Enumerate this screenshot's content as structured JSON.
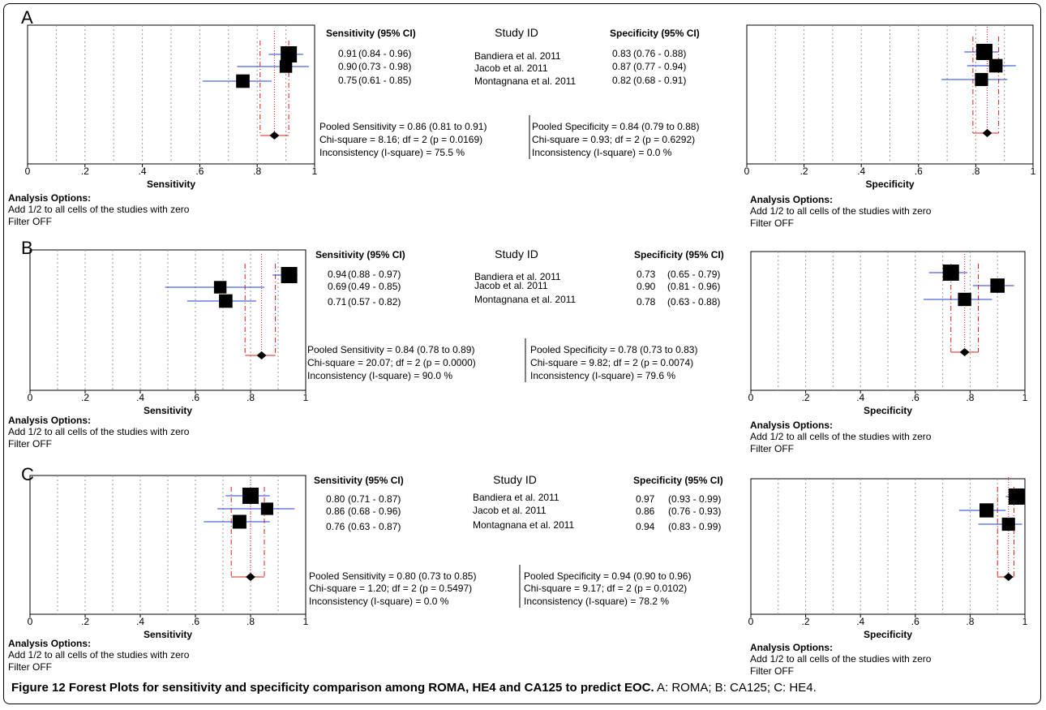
{
  "figure": {
    "caption_title": "Figure 12 Forest Plots for sensitivity and specificity comparison among ROMA, HE4 and CA125 to predict EOC.",
    "caption_detail": " A: ROMA; B: CA125; C: HE4."
  },
  "table_labels": {
    "sens_header": "Sensitivity (95% CI)",
    "study_header": "Study ID",
    "spec_header": "Specificity (95% CI)",
    "sens_xlabel": "Sensitivity",
    "spec_xlabel": "Specificity",
    "analysis_title": "Analysis Options:",
    "analysis_line1": "Add 1/2 to all cells of the studies with zero",
    "analysis_line2": "Filter OFF"
  },
  "colors": {
    "ci_line": "#1f3fd6",
    "pooled_line": "#e0201b",
    "grid": "#9a9a9a"
  },
  "chart_data": [
    {
      "type": "forest",
      "panel": "A",
      "xlim": [
        0,
        1
      ],
      "ticks": [
        "0",
        ".2",
        ".4",
        ".6",
        ".8",
        "1"
      ],
      "studies": [
        "Bandiera et al. 2011",
        "Jacob et al. 2011",
        "Montagnana et al. 2011"
      ],
      "sensitivity": {
        "point_text": [
          "0.91",
          "0.90",
          "0.75"
        ],
        "ci_text": [
          "(0.84 - 0.96)",
          "(0.73 - 0.98)",
          "(0.61 - 0.85)"
        ],
        "values": [
          0.91,
          0.9,
          0.75
        ],
        "ci": [
          [
            0.84,
            0.96
          ],
          [
            0.73,
            0.98
          ],
          [
            0.61,
            0.85
          ]
        ],
        "weights": [
          1.0,
          0.62,
          0.72
        ],
        "pooled": 0.86,
        "pooled_ci": [
          0.81,
          0.91
        ],
        "pooled_text": "Pooled Sensitivity = 0.86 (0.81 to 0.91)",
        "chi_text": "Chi-square = 8.16; df =  2 (p = 0.0169)",
        "incon_text": "Inconsistency (I-square) = 75.5 %"
      },
      "specificity": {
        "point_text": [
          "0.83",
          "0.87",
          "0.82"
        ],
        "ci_text": [
          "(0.76 - 0.88)",
          "(0.77 - 0.94)",
          "(0.68 - 0.91)"
        ],
        "values": [
          0.83,
          0.87,
          0.82
        ],
        "ci": [
          [
            0.76,
            0.88
          ],
          [
            0.77,
            0.94
          ],
          [
            0.68,
            0.91
          ]
        ],
        "weights": [
          1.0,
          0.72,
          0.68
        ],
        "pooled": 0.84,
        "pooled_ci": [
          0.79,
          0.88
        ],
        "pooled_text": "Pooled Specificity = 0.84 (0.79 to 0.88)",
        "chi_text": "Chi-square = 0.93; df =  2 (p = 0.6292)",
        "incon_text": "Inconsistency (I-square) = 0.0 %"
      }
    },
    {
      "type": "forest",
      "panel": "B",
      "xlim": [
        0,
        1
      ],
      "ticks": [
        "0",
        ".2",
        ".4",
        ".6",
        ".8",
        "1"
      ],
      "studies": [
        "Bandiera et al. 2011",
        "Jacob et al. 2011",
        "Montagnana et al. 2011"
      ],
      "sensitivity": {
        "point_text": [
          "0.94",
          "0.69",
          "0.71"
        ],
        "ci_text": [
          "(0.88 - 0.97)",
          "(0.49 - 0.85)",
          "(0.57 - 0.82)"
        ],
        "values": [
          0.94,
          0.69,
          0.71
        ],
        "ci": [
          [
            0.88,
            0.97
          ],
          [
            0.49,
            0.85
          ],
          [
            0.57,
            0.82
          ]
        ],
        "weights": [
          1.0,
          0.62,
          0.72
        ],
        "pooled": 0.84,
        "pooled_ci": [
          0.78,
          0.89
        ],
        "pooled_text": "Pooled Sensitivity = 0.84 (0.78 to 0.89)",
        "chi_text": "Chi-square = 20.07; df =  2 (p = 0.0000)",
        "incon_text": "Inconsistency (I-square) = 90.0 %"
      },
      "specificity": {
        "point_text": [
          "0.73",
          "0.90",
          "0.78"
        ],
        "ci_text": [
          "(0.65 - 0.79)",
          "(0.81 - 0.96)",
          "(0.63 - 0.88)"
        ],
        "values": [
          0.73,
          0.9,
          0.78
        ],
        "ci": [
          [
            0.65,
            0.79
          ],
          [
            0.81,
            0.96
          ],
          [
            0.63,
            0.88
          ]
        ],
        "weights": [
          1.0,
          0.8,
          0.7
        ],
        "pooled": 0.78,
        "pooled_ci": [
          0.73,
          0.83
        ],
        "pooled_text": "Pooled Specificity = 0.78 (0.73 to 0.83)",
        "chi_text": "Chi-square = 9.82; df =  2 (p = 0.0074)",
        "incon_text": "Inconsistency (I-square) = 79.6 %"
      }
    },
    {
      "type": "forest",
      "panel": "C",
      "xlim": [
        0,
        1
      ],
      "ticks": [
        "0",
        ".2",
        ".4",
        ".6",
        ".8",
        "1"
      ],
      "studies": [
        "Bandiera et al. 2011",
        "Jacob et al. 2011",
        "Montagnana et al. 2011"
      ],
      "sensitivity": {
        "point_text": [
          "0.80",
          "0.86",
          "0.76"
        ],
        "ci_text": [
          "(0.71 - 0.87)",
          "(0.68 - 0.96)",
          "(0.63 - 0.87)"
        ],
        "values": [
          0.8,
          0.86,
          0.76
        ],
        "ci": [
          [
            0.71,
            0.87
          ],
          [
            0.68,
            0.96
          ],
          [
            0.63,
            0.87
          ]
        ],
        "weights": [
          1.0,
          0.6,
          0.75
        ],
        "pooled": 0.8,
        "pooled_ci": [
          0.73,
          0.85
        ],
        "pooled_text": "Pooled Sensitivity = 0.80 (0.73 to 0.85)",
        "chi_text": "Chi-square = 1.20; df =  2 (p = 0.5497)",
        "incon_text": "Inconsistency (I-square) = 0.0 %"
      },
      "specificity": {
        "point_text": [
          "0.97",
          "0.86",
          "0.94"
        ],
        "ci_text": [
          "(0.93 - 0.99)",
          "(0.76 - 0.93)",
          "(0.83 - 0.99)"
        ],
        "values": [
          0.97,
          0.86,
          0.94
        ],
        "ci": [
          [
            0.93,
            0.99
          ],
          [
            0.76,
            0.93
          ],
          [
            0.83,
            0.99
          ]
        ],
        "weights": [
          1.0,
          0.78,
          0.68
        ],
        "pooled": 0.94,
        "pooled_ci": [
          0.9,
          0.96
        ],
        "pooled_text": "Pooled Specificity = 0.94 (0.90 to 0.96)",
        "chi_text": "Chi-square = 9.17; df =  2 (p = 0.0102)",
        "incon_text": "Inconsistency (I-square) = 78.2 %"
      }
    }
  ]
}
